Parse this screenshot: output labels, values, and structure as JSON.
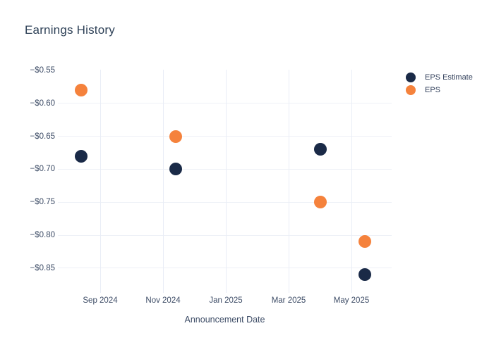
{
  "chart_data": {
    "type": "scatter",
    "title": "Earnings History",
    "xlabel": "Announcement Date",
    "ylabel": "",
    "grid": true,
    "legend_position": "right",
    "x_axis": {
      "tick_labels": [
        "Sep 2024",
        "Nov 2024",
        "Jan 2025",
        "Mar 2025",
        "May 2025"
      ],
      "tick_month_offsets_from_sep2024": [
        0,
        2,
        4,
        6,
        8
      ]
    },
    "y_axis": {
      "ticks": [
        {
          "value": -0.55,
          "label": "−$0.55"
        },
        {
          "value": -0.6,
          "label": "−$0.60"
        },
        {
          "value": -0.65,
          "label": "−$0.65"
        },
        {
          "value": -0.7,
          "label": "−$0.70"
        },
        {
          "value": -0.75,
          "label": "−$0.75"
        },
        {
          "value": -0.8,
          "label": "−$0.80"
        },
        {
          "value": -0.85,
          "label": "−$0.85"
        }
      ],
      "ylim": [
        -0.879,
        -0.55
      ]
    },
    "series": [
      {
        "name": "EPS Estimate",
        "color": "#1a2a47",
        "points": [
          {
            "date": "2024-08-13",
            "value": -0.68
          },
          {
            "date": "2024-11-13",
            "value": -0.7
          },
          {
            "date": "2025-03-31",
            "value": -0.67
          },
          {
            "date": "2025-05-14",
            "value": -0.86
          }
        ]
      },
      {
        "name": "EPS",
        "color": "#f5823c",
        "points": [
          {
            "date": "2024-08-13",
            "value": -0.58
          },
          {
            "date": "2024-11-13",
            "value": -0.65
          },
          {
            "date": "2025-03-31",
            "value": -0.75
          },
          {
            "date": "2025-05-14",
            "value": -0.81
          }
        ]
      }
    ]
  }
}
